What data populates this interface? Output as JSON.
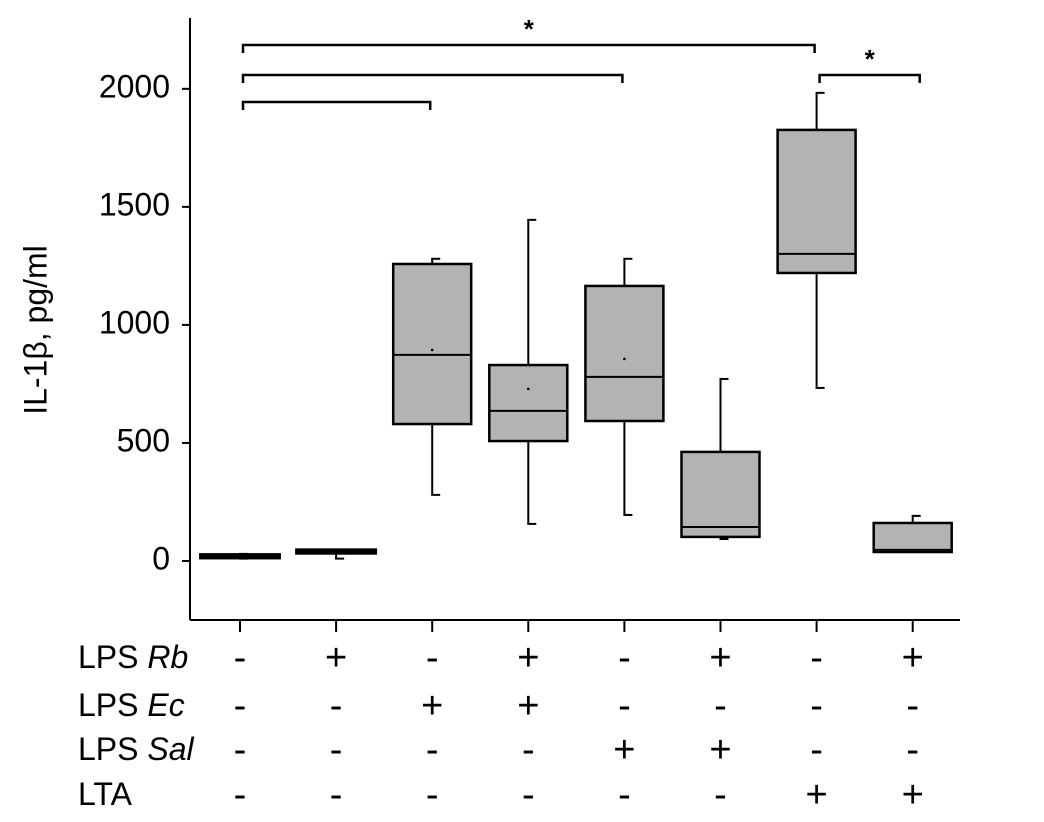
{
  "chart_data": {
    "type": "box",
    "ylabel": "IL-1β, pg/ml",
    "ylim": [
      -250,
      2300
    ],
    "yticks": [
      0,
      500,
      1000,
      1500,
      2000
    ],
    "color": "#b3b3b3",
    "boxes": [
      {
        "min": 10,
        "q1": 15,
        "median": 20,
        "q3": 25,
        "max": 30
      },
      {
        "min": 10,
        "q1": 35,
        "median": 40,
        "q3": 45,
        "max": 45
      },
      {
        "min": 280,
        "q1": 580,
        "median": 873,
        "q3": 1258,
        "max": 1280,
        "mean": 894
      },
      {
        "min": 157,
        "q1": 508,
        "median": 636,
        "q3": 830,
        "max": 1445,
        "mean": 729
      },
      {
        "min": 195,
        "q1": 593,
        "median": 780,
        "q3": 1165,
        "max": 1280,
        "mean": 856
      },
      {
        "min": 93,
        "q1": 102,
        "median": 144,
        "q3": 462,
        "max": 771
      },
      {
        "min": 733,
        "q1": 1220,
        "median": 1301,
        "q3": 1826,
        "max": 1983
      },
      {
        "min": 38,
        "q1": 38,
        "median": 47,
        "q3": 161,
        "max": 191
      }
    ],
    "factors": [
      {
        "prefix": "LPS",
        "italic": "Rb",
        "levels": [
          "-",
          "+",
          "-",
          "+",
          "-",
          "+",
          "-",
          "+"
        ]
      },
      {
        "prefix": "LPS",
        "italic": "Ec",
        "levels": [
          "-",
          "-",
          "+",
          "+",
          "-",
          "-",
          "-",
          "-"
        ]
      },
      {
        "prefix": "LPS",
        "italic": "Sal",
        "levels": [
          "-",
          "-",
          "-",
          "-",
          "+",
          "+",
          "-",
          "-"
        ]
      },
      {
        "prefix": "LTA",
        "levels": [
          "-",
          "-",
          "-",
          "-",
          "-",
          "-",
          "+",
          "+"
        ]
      }
    ],
    "brackets": [
      {
        "from": 0,
        "to": 6,
        "label": "*"
      },
      {
        "from": 0,
        "to": 4
      },
      {
        "from": 0,
        "to": 2
      },
      {
        "from": 6,
        "to": 7,
        "label": "*"
      }
    ]
  }
}
